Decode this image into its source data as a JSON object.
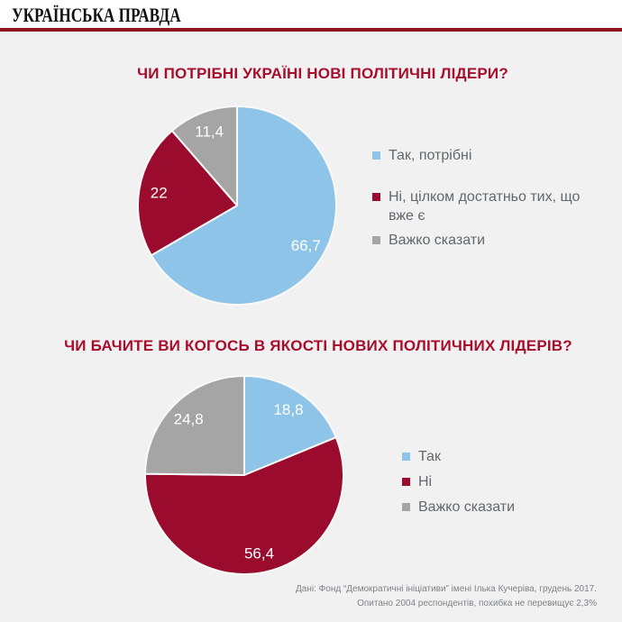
{
  "header": {
    "logo": "УКРАЇНСЬКА ПРАВДА"
  },
  "colors": {
    "background": "#f1f1f1",
    "header_bar": "#ffffff",
    "header_rule_red": "#8d1322",
    "title_red": "#a80d2c",
    "slice_blue": "#8dc4e8",
    "slice_dark_red": "#9b0b2d",
    "slice_gray": "#a5a5a5",
    "slice_label_text": "#ffffff",
    "legend_text": "#63686c",
    "footer_text": "#7e8285"
  },
  "chart_data": [
    {
      "type": "pie",
      "title": "ЧИ ПОТРІБНІ УКРАЇНІ НОВІ ПОЛІТИЧНІ ЛІДЕРИ?",
      "unit": "%",
      "start_angle": "12-oclock",
      "direction": "clockwise",
      "legend_position": "right",
      "labels_inside": true,
      "categories": [
        "Так, потрібні",
        "Ні, цілком достатньо тих, що вже є",
        "Важко сказати"
      ],
      "values": [
        66.7,
        22,
        11.4
      ],
      "display_values": [
        "66,7",
        "22",
        "11,4"
      ],
      "slice_colors": [
        "#8dc4e8",
        "#9b0b2d",
        "#a5a5a5"
      ]
    },
    {
      "type": "pie",
      "title": "ЧИ БАЧИТЕ ВИ КОГОСЬ В ЯКОСТІ НОВИХ ПОЛІТИЧНИХ ЛІДЕРІВ?",
      "unit": "%",
      "start_angle": "12-oclock",
      "direction": "clockwise",
      "legend_position": "right",
      "labels_inside": true,
      "categories": [
        "Так",
        "Ні",
        "Важко сказати"
      ],
      "values": [
        18.8,
        56.4,
        24.8
      ],
      "display_values": [
        "18,8",
        "56,4",
        "24,8"
      ],
      "slice_colors": [
        "#8dc4e8",
        "#9b0b2d",
        "#a5a5a5"
      ]
    }
  ],
  "footer": {
    "line1": "Дані: Фонд “Демократичні ініціативи” імені Ілька Кучеріва, грудень 2017.",
    "line2": "Опитано 2004 респондентів, похибка не перевищує 2,3%"
  }
}
